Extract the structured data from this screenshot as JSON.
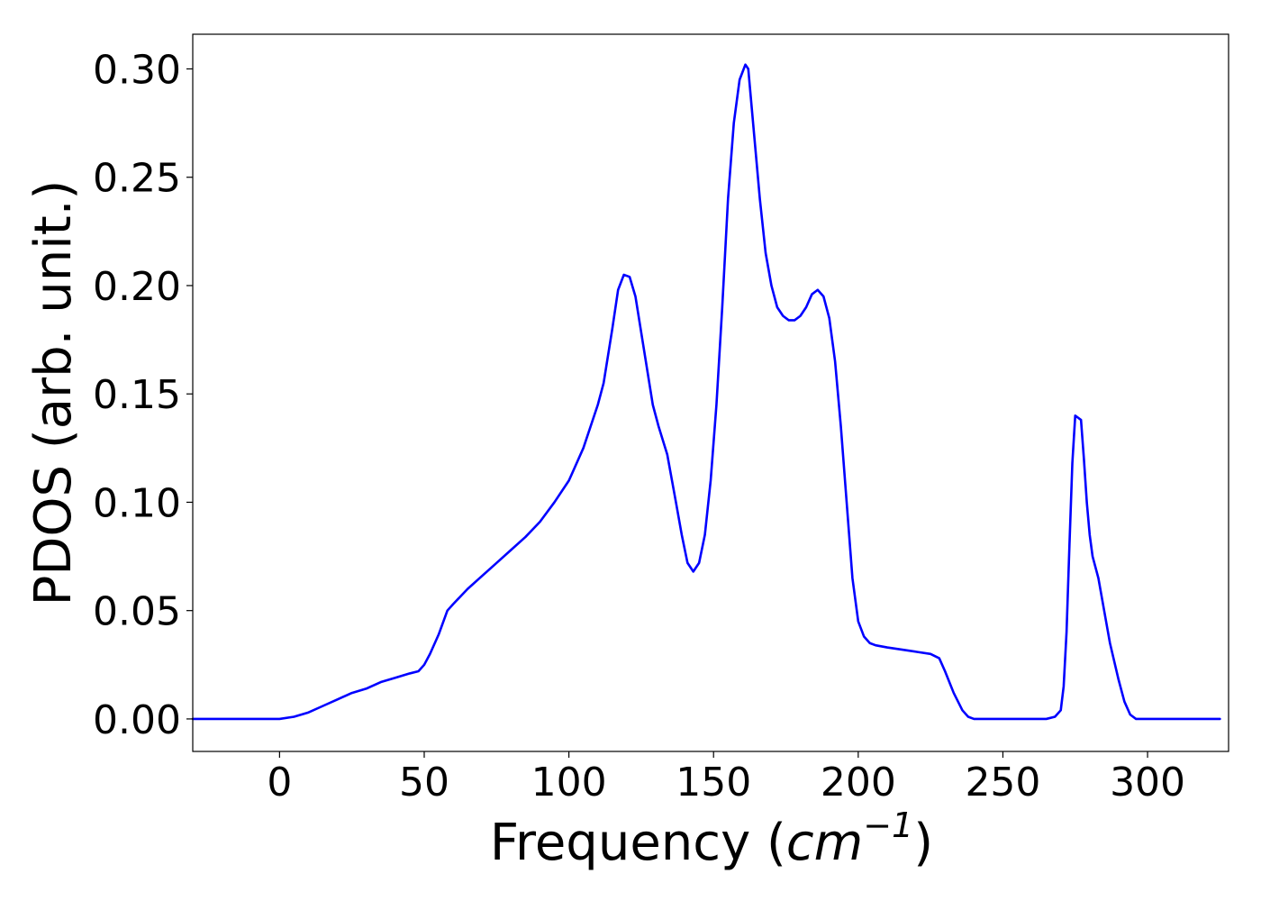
{
  "chart_data": {
    "type": "line",
    "title": "",
    "xlabel_parts": {
      "prefix": "Frequency (",
      "math_base": "cm",
      "math_exponent": "−1",
      "suffix": ")"
    },
    "ylabel": "PDOS (arb. unit.)",
    "xlim": [
      -30,
      328
    ],
    "ylim": [
      -0.015,
      0.316
    ],
    "x_ticks": [
      0,
      50,
      100,
      150,
      200,
      250,
      300
    ],
    "x_tick_labels": [
      "0",
      "50",
      "100",
      "150",
      "200",
      "250",
      "300"
    ],
    "y_ticks": [
      0.0,
      0.05,
      0.1,
      0.15,
      0.2,
      0.25,
      0.3
    ],
    "y_tick_labels": [
      "0.00",
      "0.05",
      "0.10",
      "0.15",
      "0.20",
      "0.25",
      "0.30"
    ],
    "grid": false,
    "legend": false,
    "series": [
      {
        "color": "#0000ff",
        "x": [
          -30,
          0,
          5,
          10,
          15,
          20,
          25,
          30,
          35,
          40,
          45,
          48,
          50,
          52,
          55,
          58,
          60,
          65,
          70,
          75,
          80,
          85,
          90,
          95,
          100,
          105,
          110,
          112,
          115,
          117,
          119,
          121,
          123,
          126,
          129,
          131,
          134,
          137,
          139,
          141,
          143,
          145,
          147,
          149,
          151,
          153,
          155,
          157,
          159,
          161,
          162,
          164,
          166,
          168,
          170,
          172,
          174,
          176,
          178,
          180,
          182,
          184,
          186,
          188,
          190,
          192,
          194,
          196,
          198,
          200,
          202,
          204,
          206,
          210,
          215,
          220,
          225,
          228,
          230,
          233,
          236,
          238,
          240,
          245,
          250,
          260,
          265,
          268,
          270,
          271,
          272,
          273,
          274,
          275,
          277,
          278,
          279,
          280,
          281,
          283,
          285,
          287,
          290,
          292,
          294,
          296,
          298,
          300,
          302,
          305,
          310,
          325
        ],
        "y": [
          0.0,
          0.0,
          0.001,
          0.003,
          0.006,
          0.009,
          0.012,
          0.014,
          0.017,
          0.019,
          0.021,
          0.022,
          0.025,
          0.03,
          0.039,
          0.05,
          0.053,
          0.06,
          0.066,
          0.072,
          0.078,
          0.084,
          0.091,
          0.1,
          0.11,
          0.125,
          0.145,
          0.155,
          0.18,
          0.198,
          0.205,
          0.204,
          0.195,
          0.17,
          0.145,
          0.135,
          0.122,
          0.1,
          0.085,
          0.072,
          0.068,
          0.072,
          0.085,
          0.11,
          0.145,
          0.19,
          0.24,
          0.275,
          0.295,
          0.302,
          0.3,
          0.27,
          0.24,
          0.215,
          0.2,
          0.19,
          0.186,
          0.184,
          0.184,
          0.186,
          0.19,
          0.196,
          0.198,
          0.195,
          0.185,
          0.165,
          0.135,
          0.1,
          0.065,
          0.045,
          0.038,
          0.035,
          0.034,
          0.033,
          0.032,
          0.031,
          0.03,
          0.028,
          0.022,
          0.012,
          0.004,
          0.001,
          0.0,
          0.0,
          0.0,
          0.0,
          0.0,
          0.001,
          0.004,
          0.015,
          0.04,
          0.08,
          0.118,
          0.14,
          0.138,
          0.12,
          0.1,
          0.085,
          0.075,
          0.065,
          0.05,
          0.035,
          0.018,
          0.008,
          0.002,
          0.0,
          0.0,
          0.0,
          0.0,
          0.0,
          0.0,
          0.0
        ]
      }
    ]
  }
}
